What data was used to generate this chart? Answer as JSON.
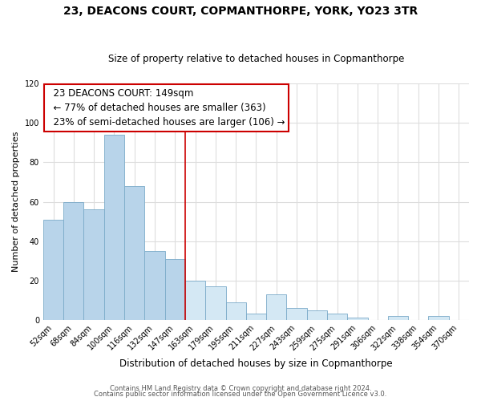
{
  "title": "23, DEACONS COURT, COPMANTHORPE, YORK, YO23 3TR",
  "subtitle": "Size of property relative to detached houses in Copmanthorpe",
  "xlabel": "Distribution of detached houses by size in Copmanthorpe",
  "ylabel": "Number of detached properties",
  "footer_line1": "Contains HM Land Registry data © Crown copyright and database right 2024.",
  "footer_line2": "Contains public sector information licensed under the Open Government Licence v3.0.",
  "annotation_title": "23 DEACONS COURT: 149sqm",
  "annotation_line1": "← 77% of detached houses are smaller (363)",
  "annotation_line2": "23% of semi-detached houses are larger (106) →",
  "bar_color_left": "#b8d4ea",
  "bar_color_right": "#d4e8f4",
  "bar_outline_color": "#7aaac8",
  "reference_line_color": "#cc0000",
  "annotation_box_color": "#cc0000",
  "background_color": "#ffffff",
  "grid_color": "#dddddd",
  "categories": [
    "52sqm",
    "68sqm",
    "84sqm",
    "100sqm",
    "116sqm",
    "132sqm",
    "147sqm",
    "163sqm",
    "179sqm",
    "195sqm",
    "211sqm",
    "227sqm",
    "243sqm",
    "259sqm",
    "275sqm",
    "291sqm",
    "306sqm",
    "322sqm",
    "338sqm",
    "354sqm",
    "370sqm"
  ],
  "values": [
    51,
    60,
    56,
    94,
    68,
    35,
    31,
    20,
    17,
    9,
    3,
    13,
    6,
    5,
    3,
    1,
    0,
    2,
    0,
    2,
    0
  ],
  "reference_bar_index": 6,
  "ylim": [
    0,
    120
  ],
  "yticks": [
    0,
    20,
    40,
    60,
    80,
    100,
    120
  ]
}
